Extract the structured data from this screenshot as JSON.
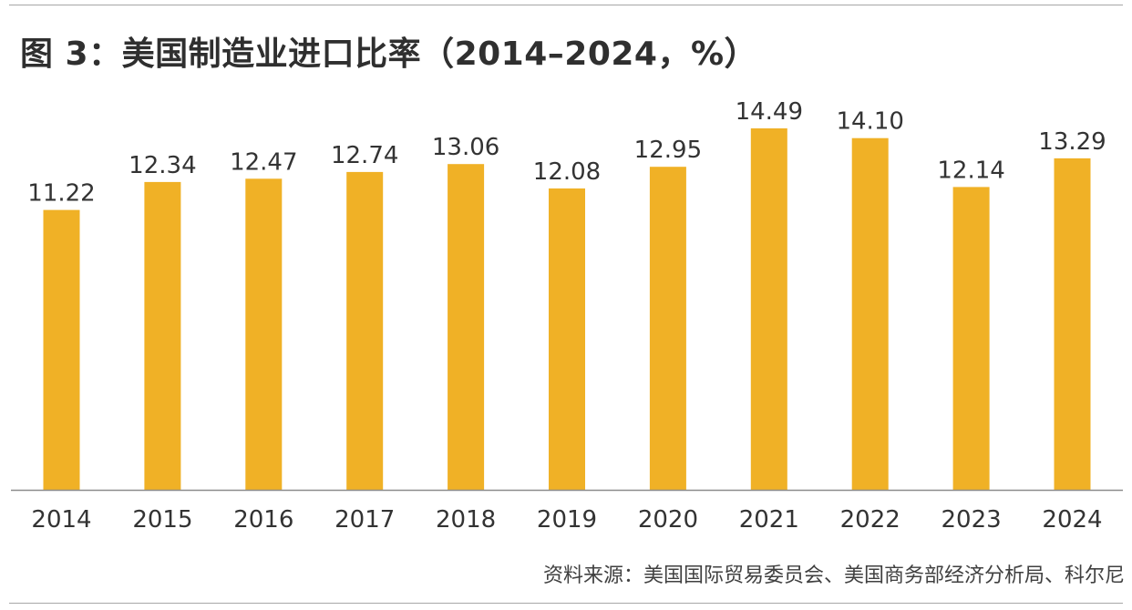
{
  "colors": {
    "bar": "#f0b126",
    "axis": "#8c8c8c",
    "text": "#333333"
  },
  "chart_data": {
    "type": "bar",
    "title": "图 3：美国制造业进口比率（2014–2024，%）",
    "categories": [
      "2014",
      "2015",
      "2016",
      "2017",
      "2018",
      "2019",
      "2020",
      "2021",
      "2022",
      "2023",
      "2024"
    ],
    "values": [
      11.22,
      12.34,
      12.47,
      12.74,
      13.06,
      12.08,
      12.95,
      14.49,
      14.1,
      12.14,
      13.29
    ],
    "value_labels": [
      "11.22",
      "12.34",
      "12.47",
      "12.74",
      "13.06",
      "12.08",
      "12.95",
      "14.49",
      "14.10",
      "12.14",
      "13.29"
    ],
    "xlabel": "",
    "ylabel": "",
    "ylim": [
      0,
      15.1
    ],
    "grid": false,
    "legend": "none"
  },
  "source": "资料来源：美国国际贸易委员会、美国商务部经济分析局、科尔尼"
}
